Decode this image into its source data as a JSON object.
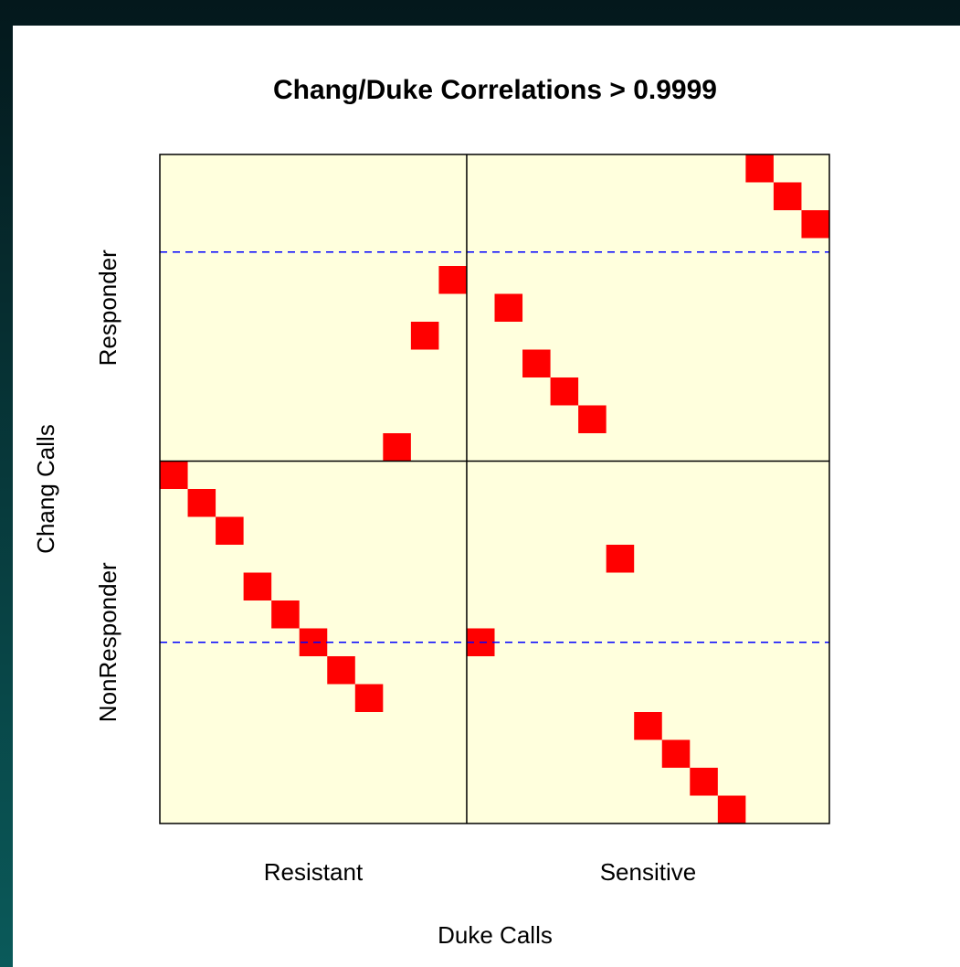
{
  "chart_data": {
    "type": "tile",
    "title": "Chang/Duke Correlations > 0.9999",
    "x_label": "Duke Calls",
    "y_label": "Chang Calls",
    "xlim": [
      0,
      24
    ],
    "ylim": [
      24,
      0
    ],
    "xticks": [
      {
        "value": 5.5,
        "label": "Resistant"
      },
      {
        "value": 17.5,
        "label": "Sensitive"
      }
    ],
    "yticks": [
      {
        "value": 5.5,
        "label": "Responder"
      },
      {
        "value": 17.5,
        "label": "NonResponder"
      }
    ],
    "grid": false,
    "color": "#ff0000",
    "panel_color": "#ffffdd",
    "x": [
      21,
      22,
      23,
      10,
      12,
      9,
      13,
      14,
      15,
      8,
      0,
      1,
      2,
      16,
      3,
      4,
      5,
      11,
      6,
      7,
      17,
      18,
      19,
      20
    ],
    "y": [
      0,
      1,
      2,
      4,
      5,
      6,
      7,
      8,
      9,
      10,
      11,
      12,
      13,
      14,
      15,
      16,
      17,
      17,
      18,
      19,
      20,
      21,
      22,
      23
    ],
    "solid_vlines": [
      11
    ],
    "solid_hlines": [
      11
    ],
    "dashed_hlines": [
      3.5,
      17.5
    ],
    "dashed_color": "#0000ff"
  }
}
